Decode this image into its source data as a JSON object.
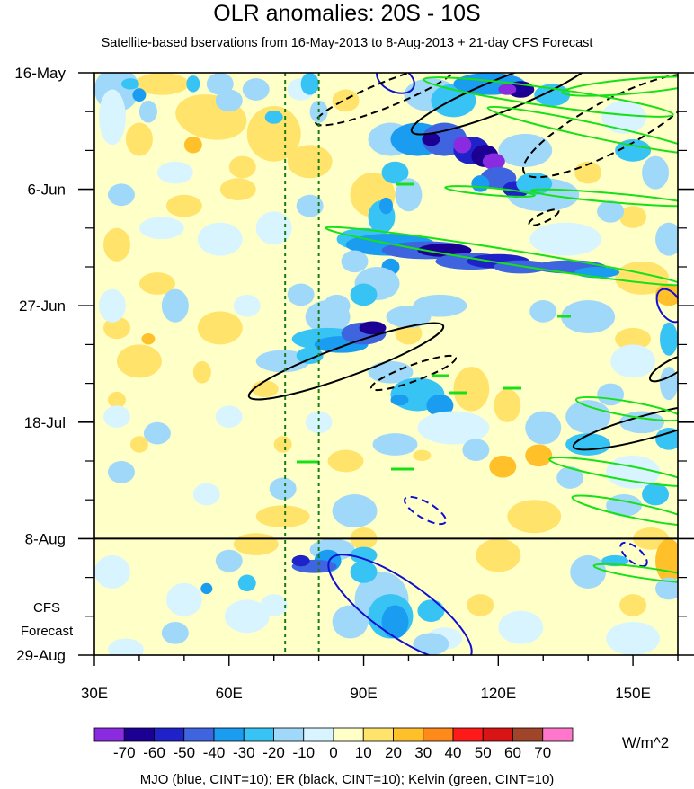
{
  "chart_data": {
    "type": "heatmap",
    "title": "OLR anomalies: 20S - 10S",
    "subtitle": "Satellite-based bservations from 16-May-2013 to 8-Aug-2013 + 21-day CFS Forecast",
    "x_ticks": [
      "30E",
      "60E",
      "90E",
      "120E",
      "150E"
    ],
    "x_tick_values": [
      30,
      60,
      90,
      120,
      150
    ],
    "xlim": [
      30,
      160
    ],
    "y_ticks": [
      "16-May",
      "6-Jun",
      "27-Jun",
      "18-Jul",
      "8-Aug",
      "29-Aug"
    ],
    "y_tick_values": [
      0,
      21,
      42,
      63,
      84,
      105
    ],
    "ylim": [
      0,
      105
    ],
    "observation_end_line": 84,
    "forecast_label": [
      "CFS",
      "Forecast"
    ],
    "reference_lon_lines": [
      72.5,
      80
    ],
    "colorbar": {
      "levels": [
        "-70",
        "-60",
        "-50",
        "-40",
        "-30",
        "-20",
        "-10",
        "0",
        "10",
        "20",
        "30",
        "40",
        "50",
        "60",
        "70"
      ],
      "colors": [
        "#8a2be2",
        "#1c0094",
        "#1e22c8",
        "#3e64e0",
        "#1a9cf0",
        "#37c4f5",
        "#a0d8fa",
        "#d8f5ff",
        "#ffffc8",
        "#ffe36b",
        "#ffc02a",
        "#ff8a1a",
        "#ff1a1a",
        "#d81414",
        "#a0442a",
        "#ff77cc"
      ],
      "unit": "W/m^2"
    },
    "contour_note": "MJO (blue, CINT=10); ER (black, CINT=10); Kelvin (green, CINT=10)",
    "series": [
      {
        "name": "MJO",
        "color": "#1010d0"
      },
      {
        "name": "ER",
        "color": "#000000"
      },
      {
        "name": "Kelvin",
        "color": "#18e018"
      }
    ]
  }
}
